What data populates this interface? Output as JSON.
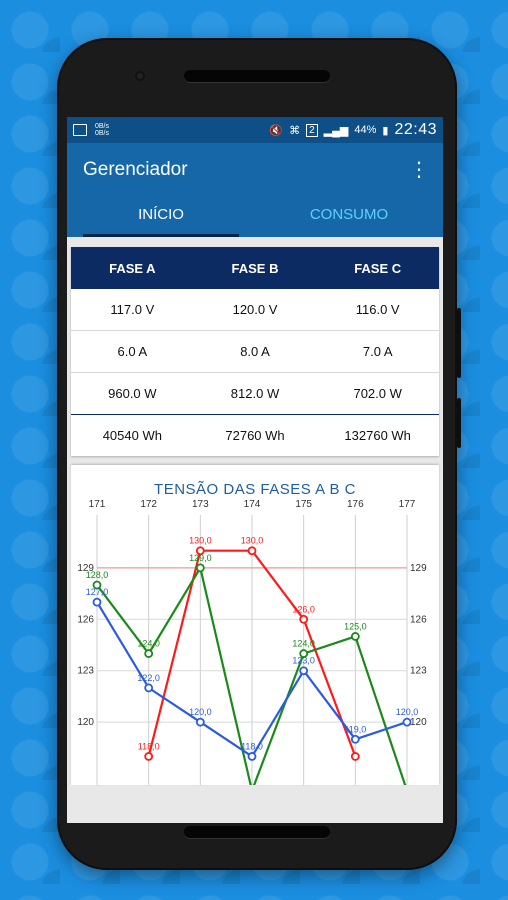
{
  "status_bar": {
    "left_icon": "image-icon",
    "net_speed_top": "0B/s",
    "net_speed_bottom": "0B/s",
    "sim_slot": "2",
    "battery": "44%",
    "time": "22:43"
  },
  "app": {
    "title": "Gerenciador",
    "menu_icon": "more-vert-icon",
    "tabs": [
      {
        "label": "INÍCIO",
        "active": true
      },
      {
        "label": "CONSUMO",
        "active": false
      }
    ]
  },
  "table": {
    "headers": [
      "FASE A",
      "FASE B",
      "FASE C"
    ],
    "rows": [
      [
        "117.0 V",
        "120.0 V",
        "116.0 V"
      ],
      [
        "6.0 A",
        "8.0 A",
        "7.0 A"
      ],
      [
        "960.0 W",
        "812.0 W",
        "702.0 W"
      ],
      [
        "40540 Wh",
        "72760 Wh",
        "132760 Wh"
      ]
    ]
  },
  "chart_data": {
    "type": "line",
    "title": "TENSÃO DAS FASES A B C",
    "x": [
      171,
      172,
      173,
      174,
      175,
      176,
      177
    ],
    "y_ticks": [
      120,
      123,
      126,
      129
    ],
    "limit_line": 129,
    "series": [
      {
        "color": "#ff1a1a",
        "values": [
          null,
          118.0,
          130.0,
          130.0,
          126.0,
          118.0,
          null
        ],
        "labels": [
          "",
          "118,0",
          "130,0",
          "130,0",
          "126,0",
          "",
          ""
        ]
      },
      {
        "color": "#1a8a1a",
        "values": [
          128.0,
          124.0,
          129.0,
          116.0,
          124.0,
          125.0,
          116.0
        ],
        "labels": [
          "128,0",
          "124,0",
          "129,0",
          "",
          "124,0",
          "125,0",
          ""
        ]
      },
      {
        "color": "#2a5be0",
        "values": [
          127.0,
          122.0,
          120.0,
          118.0,
          123.0,
          119.0,
          120.0
        ],
        "labels": [
          "127,0",
          "122,0",
          "120,0",
          "118,0",
          "123,0",
          "119,0",
          "120,0"
        ]
      }
    ],
    "grid": true
  }
}
